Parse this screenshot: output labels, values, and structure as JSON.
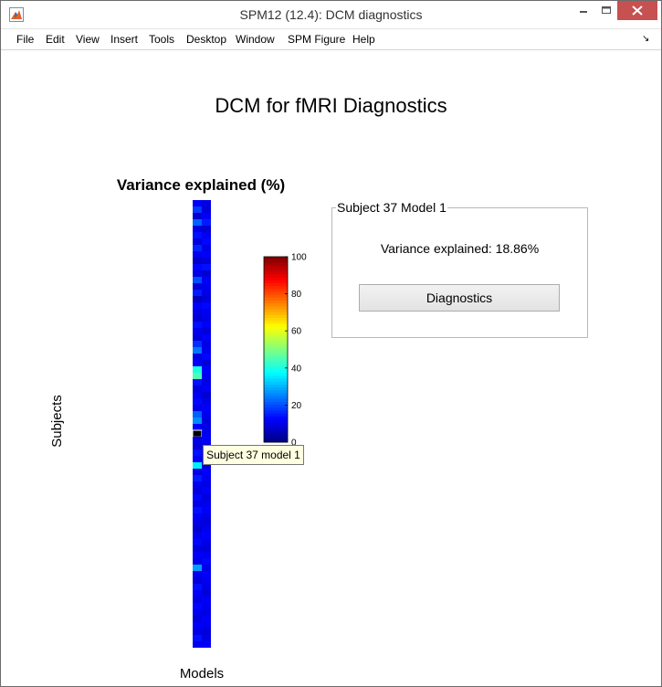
{
  "window": {
    "title": "SPM12 (12.4): DCM diagnostics"
  },
  "menu": [
    "File",
    "Edit",
    "View",
    "Insert",
    "Tools",
    "Desktop",
    "Window",
    "SPM Figure",
    "Help"
  ],
  "menu_icons": {
    "app": "matlab-icon",
    "overflow": "arrow-icon"
  },
  "figure": {
    "title": "DCM for fMRI Diagnostics",
    "axes_title": "Variance explained (%)",
    "ylabel": "Subjects",
    "xlabel": "Models",
    "tooltip": "Subject 37 model 1"
  },
  "panel": {
    "title": "Subject 37 Model 1",
    "variance_text": "Variance explained: 18.86%",
    "button_label": "Diagnostics"
  },
  "chart_data": {
    "type": "heatmap",
    "title": "Variance explained (%)",
    "xlabel": "Models",
    "ylabel": "Subjects",
    "colormap": "jet",
    "clim": [
      0,
      100
    ],
    "colorbar_ticks": [
      "100",
      "80",
      "60",
      "40",
      "20",
      "0"
    ],
    "rows": 70,
    "cols": 2,
    "selected": {
      "subject": 37,
      "model": 1
    },
    "values": [
      [
        12,
        10
      ],
      [
        18,
        9
      ],
      [
        8,
        12
      ],
      [
        22,
        15
      ],
      [
        10,
        8
      ],
      [
        14,
        11
      ],
      [
        9,
        13
      ],
      [
        16,
        10
      ],
      [
        11,
        12
      ],
      [
        7,
        9
      ],
      [
        13,
        14
      ],
      [
        10,
        8
      ],
      [
        20,
        12
      ],
      [
        9,
        11
      ],
      [
        15,
        10
      ],
      [
        6,
        9
      ],
      [
        12,
        13
      ],
      [
        10,
        11
      ],
      [
        8,
        10
      ],
      [
        14,
        12
      ],
      [
        11,
        9
      ],
      [
        9,
        12
      ],
      [
        17,
        10
      ],
      [
        24,
        11
      ],
      [
        10,
        13
      ],
      [
        12,
        9
      ],
      [
        40,
        12
      ],
      [
        45,
        11
      ],
      [
        14,
        10
      ],
      [
        9,
        12
      ],
      [
        11,
        8
      ],
      [
        13,
        10
      ],
      [
        10,
        12
      ],
      [
        22,
        11
      ],
      [
        26,
        9
      ],
      [
        12,
        10
      ],
      [
        18.86,
        11
      ],
      [
        10,
        12
      ],
      [
        9,
        8
      ],
      [
        14,
        11
      ],
      [
        12,
        10
      ],
      [
        36,
        9
      ],
      [
        10,
        12
      ],
      [
        15,
        11
      ],
      [
        11,
        10
      ],
      [
        9,
        12
      ],
      [
        13,
        9
      ],
      [
        10,
        11
      ],
      [
        14,
        12
      ],
      [
        12,
        10
      ],
      [
        10,
        9
      ],
      [
        8,
        11
      ],
      [
        11,
        12
      ],
      [
        13,
        10
      ],
      [
        9,
        9
      ],
      [
        12,
        11
      ],
      [
        10,
        13
      ],
      [
        28,
        10
      ],
      [
        11,
        12
      ],
      [
        9,
        11
      ],
      [
        14,
        10
      ],
      [
        12,
        9
      ],
      [
        10,
        12
      ],
      [
        13,
        11
      ],
      [
        11,
        10
      ],
      [
        9,
        12
      ],
      [
        12,
        11
      ],
      [
        10,
        9
      ],
      [
        14,
        10
      ],
      [
        11,
        12
      ]
    ]
  }
}
